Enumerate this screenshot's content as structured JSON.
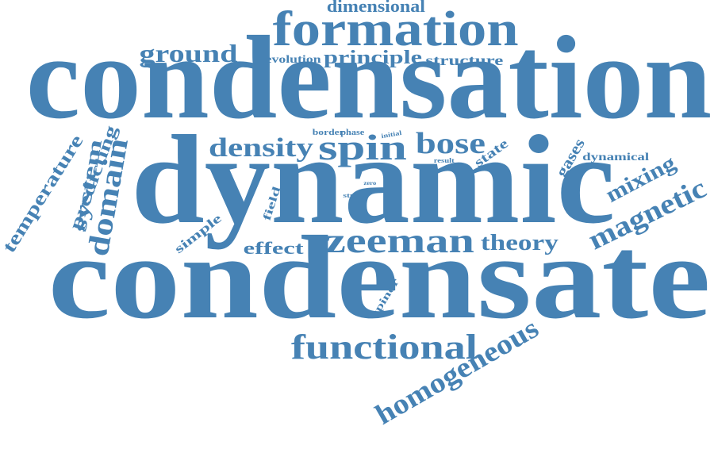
{
  "color": "#4682b4",
  "words": [
    {
      "text": "condensation"
    },
    {
      "text": "dynamic"
    },
    {
      "text": "condensate"
    },
    {
      "text": "formation"
    },
    {
      "text": "functional"
    },
    {
      "text": "dimensional"
    },
    {
      "text": "ground"
    },
    {
      "text": "evolution"
    },
    {
      "text": "principle"
    },
    {
      "text": "structure"
    },
    {
      "text": "density"
    },
    {
      "text": "spin"
    },
    {
      "text": "bose"
    },
    {
      "text": "zeeman"
    },
    {
      "text": "theory"
    },
    {
      "text": "effect"
    },
    {
      "text": "magnetic"
    },
    {
      "text": "mixing"
    },
    {
      "text": "dynamical"
    },
    {
      "text": "gases"
    },
    {
      "text": "state"
    },
    {
      "text": "border"
    },
    {
      "text": "phase"
    },
    {
      "text": "initial"
    },
    {
      "text": "result"
    },
    {
      "text": "zero"
    },
    {
      "text": "study"
    },
    {
      "text": "field"
    },
    {
      "text": "simple"
    },
    {
      "text": "domain"
    },
    {
      "text": "system"
    },
    {
      "text": "predicting"
    },
    {
      "text": "temperature"
    },
    {
      "text": "spinor"
    },
    {
      "text": "homogeneous"
    }
  ]
}
